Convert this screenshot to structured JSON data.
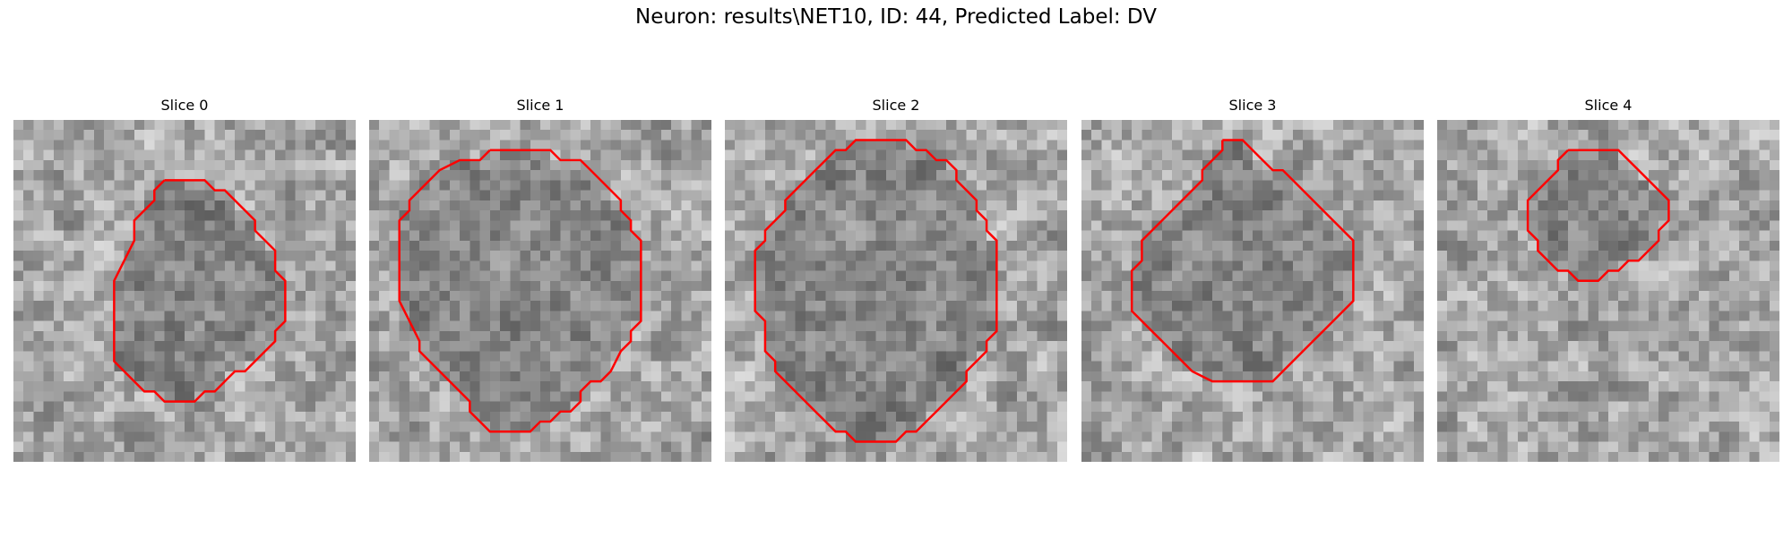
{
  "figure": {
    "title": "Neuron: results\\NET10, ID: 44, Predicted Label: DV",
    "contour_color": "#ff0000"
  },
  "panels": [
    {
      "title": "Slice 0",
      "contour": [
        [
          15,
          6
        ],
        [
          19,
          6
        ],
        [
          20,
          7
        ],
        [
          21,
          7
        ],
        [
          24,
          10
        ],
        [
          24,
          11
        ],
        [
          26,
          13
        ],
        [
          26,
          15
        ],
        [
          27,
          16
        ],
        [
          27,
          20
        ],
        [
          26,
          21
        ],
        [
          26,
          22
        ],
        [
          25,
          23
        ],
        [
          24,
          24
        ],
        [
          23,
          25
        ],
        [
          22,
          25
        ],
        [
          20,
          27
        ],
        [
          19,
          27
        ],
        [
          18,
          28
        ],
        [
          15,
          28
        ],
        [
          14,
          27
        ],
        [
          13,
          27
        ],
        [
          12,
          26
        ],
        [
          11,
          25
        ],
        [
          10,
          24
        ],
        [
          10,
          22
        ],
        [
          10,
          19
        ],
        [
          10,
          16
        ],
        [
          11,
          14
        ],
        [
          12,
          12
        ],
        [
          12,
          10
        ],
        [
          13,
          9
        ],
        [
          14,
          8
        ],
        [
          14,
          7
        ],
        [
          15,
          6
        ]
      ]
    },
    {
      "title": "Slice 1",
      "contour": [
        [
          12,
          3
        ],
        [
          18,
          3
        ],
        [
          19,
          4
        ],
        [
          21,
          4
        ],
        [
          22,
          5
        ],
        [
          23,
          6
        ],
        [
          24,
          7
        ],
        [
          25,
          8
        ],
        [
          25,
          9
        ],
        [
          26,
          10
        ],
        [
          26,
          11
        ],
        [
          27,
          12
        ],
        [
          27,
          20
        ],
        [
          26,
          21
        ],
        [
          26,
          22
        ],
        [
          25,
          23
        ],
        [
          24,
          25
        ],
        [
          23,
          26
        ],
        [
          22,
          26
        ],
        [
          21,
          27
        ],
        [
          21,
          28
        ],
        [
          20,
          29
        ],
        [
          19,
          29
        ],
        [
          18,
          30
        ],
        [
          17,
          30
        ],
        [
          16,
          31
        ],
        [
          14,
          31
        ],
        [
          13,
          31
        ],
        [
          12,
          31
        ],
        [
          11,
          30
        ],
        [
          10,
          29
        ],
        [
          10,
          28
        ],
        [
          9,
          27
        ],
        [
          8,
          26
        ],
        [
          7,
          25
        ],
        [
          6,
          24
        ],
        [
          5,
          23
        ],
        [
          5,
          22
        ],
        [
          4,
          20
        ],
        [
          3,
          18
        ],
        [
          3,
          16
        ],
        [
          3,
          13
        ],
        [
          3,
          10
        ],
        [
          4,
          9
        ],
        [
          4,
          8
        ],
        [
          5,
          7
        ],
        [
          6,
          6
        ],
        [
          7,
          5
        ],
        [
          9,
          4
        ],
        [
          11,
          4
        ],
        [
          12,
          3
        ]
      ]
    },
    {
      "title": "Slice 2",
      "contour": [
        [
          14,
          2
        ],
        [
          18,
          2
        ],
        [
          19,
          3
        ],
        [
          20,
          3
        ],
        [
          21,
          4
        ],
        [
          22,
          4
        ],
        [
          23,
          5
        ],
        [
          23,
          6
        ],
        [
          24,
          7
        ],
        [
          25,
          8
        ],
        [
          25,
          9
        ],
        [
          26,
          10
        ],
        [
          26,
          11
        ],
        [
          27,
          12
        ],
        [
          27,
          21
        ],
        [
          26,
          22
        ],
        [
          26,
          23
        ],
        [
          25,
          24
        ],
        [
          24,
          25
        ],
        [
          24,
          26
        ],
        [
          23,
          27
        ],
        [
          22,
          28
        ],
        [
          21,
          29
        ],
        [
          20,
          30
        ],
        [
          19,
          31
        ],
        [
          18,
          31
        ],
        [
          17,
          32
        ],
        [
          13,
          32
        ],
        [
          12,
          31
        ],
        [
          11,
          31
        ],
        [
          10,
          30
        ],
        [
          9,
          29
        ],
        [
          8,
          28
        ],
        [
          7,
          27
        ],
        [
          6,
          26
        ],
        [
          5,
          25
        ],
        [
          5,
          24
        ],
        [
          4,
          23
        ],
        [
          4,
          22
        ],
        [
          4,
          20
        ],
        [
          3,
          19
        ],
        [
          3,
          13
        ],
        [
          4,
          12
        ],
        [
          4,
          11
        ],
        [
          5,
          10
        ],
        [
          6,
          9
        ],
        [
          6,
          8
        ],
        [
          7,
          7
        ],
        [
          8,
          6
        ],
        [
          9,
          5
        ],
        [
          10,
          4
        ],
        [
          11,
          3
        ],
        [
          12,
          3
        ],
        [
          13,
          2
        ],
        [
          14,
          2
        ]
      ]
    },
    {
      "title": "Slice 3",
      "contour": [
        [
          14,
          2
        ],
        [
          16,
          2
        ],
        [
          17,
          3
        ],
        [
          18,
          4
        ],
        [
          19,
          5
        ],
        [
          20,
          5
        ],
        [
          21,
          6
        ],
        [
          22,
          7
        ],
        [
          23,
          8
        ],
        [
          24,
          9
        ],
        [
          25,
          10
        ],
        [
          26,
          11
        ],
        [
          27,
          12
        ],
        [
          27,
          18
        ],
        [
          26,
          19
        ],
        [
          25,
          20
        ],
        [
          24,
          21
        ],
        [
          23,
          22
        ],
        [
          22,
          23
        ],
        [
          21,
          24
        ],
        [
          20,
          25
        ],
        [
          19,
          26
        ],
        [
          13,
          26
        ],
        [
          11,
          25
        ],
        [
          10,
          24
        ],
        [
          9,
          23
        ],
        [
          8,
          22
        ],
        [
          7,
          21
        ],
        [
          6,
          20
        ],
        [
          5,
          19
        ],
        [
          5,
          17
        ],
        [
          5,
          15
        ],
        [
          6,
          14
        ],
        [
          6,
          12
        ],
        [
          7,
          11
        ],
        [
          8,
          10
        ],
        [
          9,
          9
        ],
        [
          10,
          8
        ],
        [
          11,
          7
        ],
        [
          12,
          6
        ],
        [
          12,
          5
        ],
        [
          13,
          4
        ],
        [
          14,
          3
        ],
        [
          14,
          2
        ]
      ]
    },
    {
      "title": "Slice 4",
      "contour": [
        [
          13,
          3
        ],
        [
          18,
          3
        ],
        [
          19,
          4
        ],
        [
          20,
          5
        ],
        [
          21,
          6
        ],
        [
          22,
          7
        ],
        [
          23,
          8
        ],
        [
          23,
          10
        ],
        [
          22,
          11
        ],
        [
          22,
          12
        ],
        [
          21,
          13
        ],
        [
          20,
          14
        ],
        [
          19,
          14
        ],
        [
          18,
          15
        ],
        [
          17,
          15
        ],
        [
          16,
          16
        ],
        [
          15,
          16
        ],
        [
          14,
          16
        ],
        [
          13,
          15
        ],
        [
          12,
          15
        ],
        [
          11,
          14
        ],
        [
          10,
          13
        ],
        [
          10,
          12
        ],
        [
          9,
          11
        ],
        [
          9,
          10
        ],
        [
          9,
          8
        ],
        [
          10,
          7
        ],
        [
          11,
          6
        ],
        [
          12,
          5
        ],
        [
          12,
          4
        ],
        [
          13,
          3
        ]
      ]
    }
  ]
}
